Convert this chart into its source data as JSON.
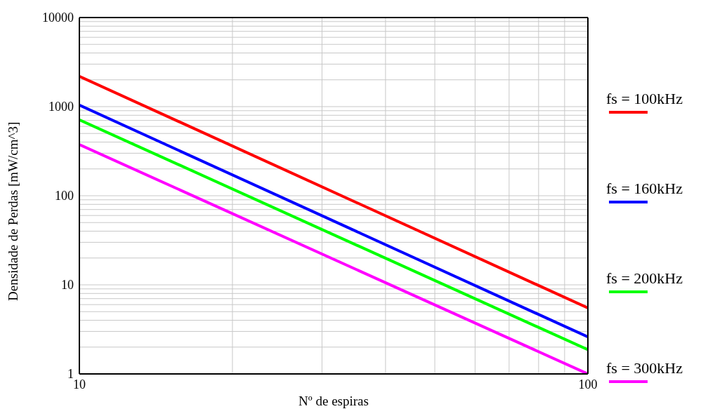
{
  "chart_data": {
    "type": "line",
    "xlabel": "Nº de espiras",
    "ylabel": "Densidade de Perdas [mW/cm^3]",
    "log": "xy",
    "grid": true,
    "legend": "right",
    "marker": "none",
    "line_style": "solid",
    "x": [
      10,
      100
    ],
    "series": [
      {
        "name": "fs = 100kHz",
        "color": "#ff0000",
        "values": [
          2190,
          5.5
        ]
      },
      {
        "name": "fs = 160kHz",
        "color": "#0000ff",
        "values": [
          1040,
          2.6
        ]
      },
      {
        "name": "fs = 200kHz",
        "color": "#00ff00",
        "values": [
          712,
          1.87
        ]
      },
      {
        "name": "fs = 300kHz",
        "color": "#ff00ff",
        "values": [
          375,
          1.0
        ]
      }
    ],
    "xlim": [
      10,
      100
    ],
    "xticks": [
      10,
      {
        "value": 20,
        "label": null
      },
      {
        "value": 30,
        "label": null
      },
      {
        "value": 40,
        "label": null
      },
      {
        "value": 50,
        "label": null
      },
      {
        "value": 60,
        "label": null
      },
      {
        "value": 70,
        "label": null
      },
      {
        "value": 80,
        "label": null
      },
      {
        "value": 90,
        "label": null
      },
      100
    ],
    "ylim": [
      1,
      10000
    ],
    "yticks": [
      1,
      {
        "value": 2,
        "label": null
      },
      {
        "value": 3,
        "label": null
      },
      {
        "value": 4,
        "label": null
      },
      {
        "value": 5,
        "label": null
      },
      {
        "value": 6,
        "label": null
      },
      {
        "value": 7,
        "label": null
      },
      {
        "value": 8,
        "label": null
      },
      {
        "value": 9,
        "label": null
      },
      10,
      {
        "value": 20,
        "label": null
      },
      {
        "value": 30,
        "label": null
      },
      {
        "value": 40,
        "label": null
      },
      {
        "value": 50,
        "label": null
      },
      {
        "value": 60,
        "label": null
      },
      {
        "value": 70,
        "label": null
      },
      {
        "value": 80,
        "label": null
      },
      {
        "value": 90,
        "label": null
      },
      100,
      {
        "value": 200,
        "label": null
      },
      {
        "value": 300,
        "label": null
      },
      {
        "value": 400,
        "label": null
      },
      {
        "value": 500,
        "label": null
      },
      {
        "value": 600,
        "label": null
      },
      {
        "value": 700,
        "label": null
      },
      {
        "value": 800,
        "label": null
      },
      {
        "value": 900,
        "label": null
      },
      1000,
      {
        "value": 2000,
        "label": null
      },
      {
        "value": 3000,
        "label": null
      },
      {
        "value": 4000,
        "label": null
      },
      {
        "value": 5000,
        "label": null
      },
      {
        "value": 6000,
        "label": null
      },
      {
        "value": 7000,
        "label": null
      },
      {
        "value": 8000,
        "label": null
      },
      {
        "value": 9000,
        "label": null
      },
      10000
    ]
  }
}
